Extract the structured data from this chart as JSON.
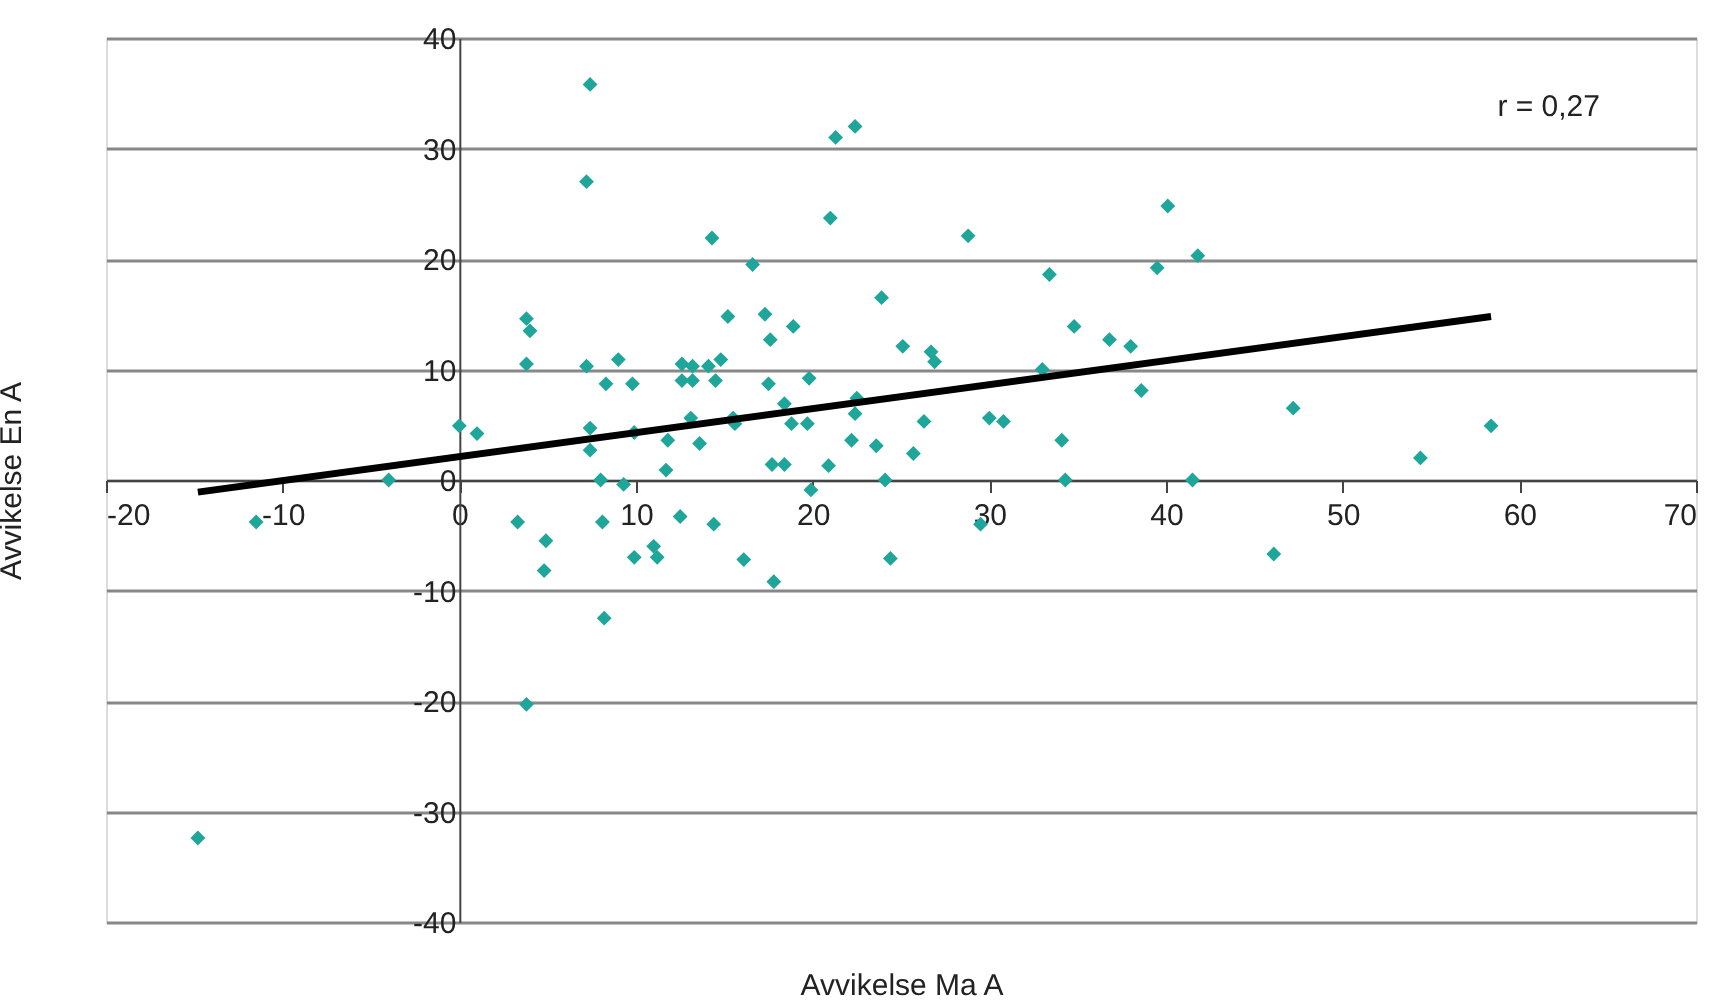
{
  "chart_data": {
    "type": "scatter",
    "xlabel": "Avvikelse Ma A",
    "ylabel": "Avvikelse En A",
    "annotations": [
      "r = 0,27"
    ],
    "xlim": [
      -20,
      70
    ],
    "ylim": [
      -40,
      40
    ],
    "xticks": [
      -20,
      -10,
      0,
      10,
      20,
      30,
      40,
      50,
      60,
      70
    ],
    "yticks": [
      -40,
      -30,
      -20,
      -10,
      0,
      10,
      20,
      30,
      40
    ],
    "grid": "y",
    "series": [
      {
        "color": "#1fa69b",
        "marker": "diamond",
        "x": [
          -14.8,
          -11.5,
          -4,
          0,
          1,
          3.3,
          3.8,
          4,
          3.8,
          3.8,
          4.9,
          4.8,
          7.4,
          7.2,
          7.2,
          7.4,
          7.4,
          8,
          9.3,
          8.1,
          8.2,
          8.3,
          9,
          9.8,
          9.9,
          9.9,
          11,
          11.2,
          11.7,
          12.5,
          14.4,
          16.1,
          14.3,
          16.6,
          21,
          21.3,
          22.4,
          28.8,
          33.4,
          15.2,
          17.3,
          17.6,
          18.9,
          23.9,
          25.1,
          26.7,
          26.9,
          34.8,
          36.8,
          38,
          38.6,
          39.5,
          33,
          12.6,
          13.2,
          14.1,
          14.8,
          12.6,
          13.2,
          14.5,
          17.5,
          19.8,
          11.8,
          13.1,
          13.6,
          15.5,
          15.6,
          18.4,
          18.8,
          19.7,
          22.5,
          22.4,
          22.2,
          23.6,
          26.3,
          25.7,
          30,
          30.8,
          34.1,
          17.7,
          18.4,
          20.9,
          19.9,
          17.8,
          24.4,
          24.1,
          29.5,
          34.3,
          41.5,
          41.8,
          40.1,
          47.2,
          58.4,
          54.4,
          46.1
        ],
        "values": [
          -32.4,
          -3.8,
          0,
          4.9,
          4.2,
          -3.8,
          14.6,
          13.5,
          10.5,
          -20.3,
          -5.5,
          -8.2,
          35.8,
          27,
          10.3,
          4.7,
          2.7,
          0,
          -0.4,
          -3.8,
          -12.5,
          8.7,
          10.9,
          8.7,
          4.3,
          -7,
          -6,
          -7,
          0.9,
          -3.3,
          -4,
          -7.2,
          21.9,
          19.5,
          23.7,
          31,
          32,
          22.1,
          18.6,
          14.8,
          15,
          12.7,
          13.9,
          16.5,
          12.1,
          11.6,
          10.7,
          13.9,
          12.7,
          12.1,
          8.1,
          19.2,
          10,
          10.5,
          10.3,
          10.3,
          10.9,
          9,
          9,
          9,
          8.7,
          9.2,
          3.6,
          5.6,
          3.3,
          5.6,
          5.1,
          6.9,
          5.1,
          5.1,
          7.4,
          6,
          3.6,
          3.1,
          5.3,
          2.4,
          5.6,
          5.3,
          3.6,
          1.4,
          1.4,
          1.3,
          -0.9,
          -9.2,
          -7.1,
          0,
          -4,
          0,
          0,
          20.3,
          24.8,
          6.5,
          4.9,
          2,
          -6.7
        ]
      },
      {
        "type": "line",
        "color": "#000000",
        "marker": "none",
        "line_style": "solid",
        "x": [
          -14.8,
          58.4
        ],
        "values": [
          -1.1,
          14.8
        ]
      }
    ]
  }
}
